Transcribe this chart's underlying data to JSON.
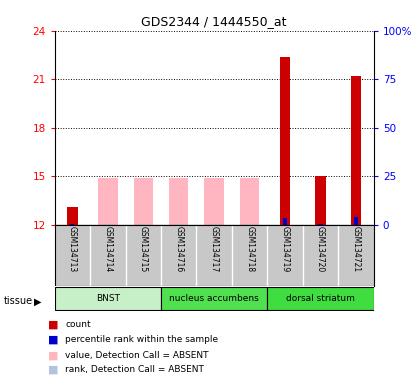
{
  "title": "GDS2344 / 1444550_at",
  "samples": [
    "GSM134713",
    "GSM134714",
    "GSM134715",
    "GSM134716",
    "GSM134717",
    "GSM134718",
    "GSM134719",
    "GSM134720",
    "GSM134721"
  ],
  "count_values": [
    13.1,
    0,
    0,
    0,
    0,
    0,
    22.4,
    15.0,
    21.2
  ],
  "count_absent_values": [
    0,
    14.9,
    14.9,
    14.9,
    14.9,
    14.9,
    0,
    0,
    0
  ],
  "percentile_values": [
    0.5,
    0,
    0,
    0,
    0,
    0,
    3.5,
    0.5,
    4.0
  ],
  "percentile_absent_values": [
    0,
    0.3,
    0.3,
    0.3,
    0.3,
    0.3,
    0,
    0,
    0
  ],
  "ylim_left": [
    12,
    24
  ],
  "ylim_right": [
    0,
    100
  ],
  "yticks_left": [
    12,
    15,
    18,
    21,
    24
  ],
  "yticks_right": [
    0,
    25,
    50,
    75,
    100
  ],
  "ytick_right_labels": [
    "0",
    "25",
    "50",
    "75",
    "100%"
  ],
  "tissues": [
    {
      "label": "BNST",
      "start": 0,
      "end": 3,
      "color": "#C8F0C8"
    },
    {
      "label": "nucleus accumbens",
      "start": 3,
      "end": 6,
      "color": "#50E050"
    },
    {
      "label": "dorsal striatum",
      "start": 6,
      "end": 9,
      "color": "#40DD40"
    }
  ],
  "count_color": "#CC0000",
  "count_absent_color": "#FFB6C1",
  "rank_color": "#0000CC",
  "rank_absent_color": "#B0C4DE",
  "sample_bg": "#C8C8C8",
  "legend_items": [
    {
      "color": "#CC0000",
      "label": "count"
    },
    {
      "color": "#0000CC",
      "label": "percentile rank within the sample"
    },
    {
      "color": "#FFB6C1",
      "label": "value, Detection Call = ABSENT"
    },
    {
      "color": "#B0C4DE",
      "label": "rank, Detection Call = ABSENT"
    }
  ]
}
